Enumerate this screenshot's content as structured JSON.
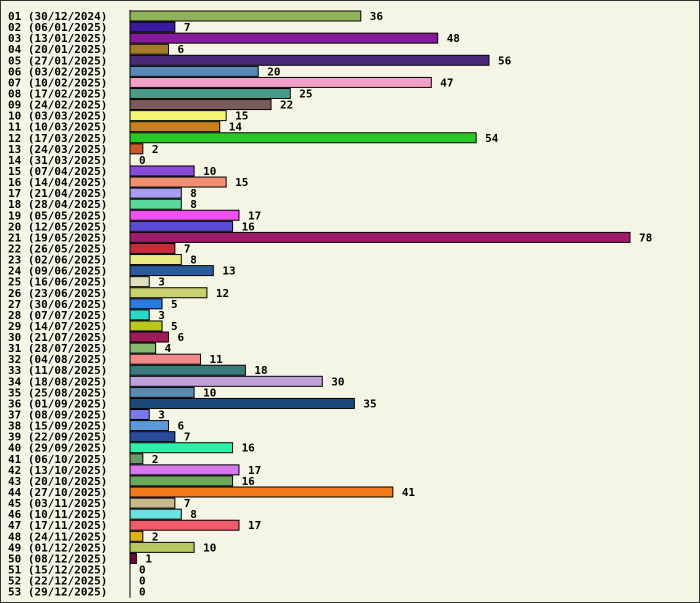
{
  "chart_data": {
    "type": "bar",
    "orientation": "horizontal",
    "title": "",
    "xlabel": "",
    "ylabel": "",
    "grid": false,
    "xlim": [
      0,
      78
    ],
    "categories": [
      "01 (30/12/2024)",
      "02 (06/01/2025)",
      "03 (13/01/2025)",
      "04 (20/01/2025)",
      "05 (27/01/2025)",
      "06 (03/02/2025)",
      "07 (10/02/2025)",
      "08 (17/02/2025)",
      "09 (24/02/2025)",
      "10 (03/03/2025)",
      "11 (10/03/2025)",
      "12 (17/03/2025)",
      "13 (24/03/2025)",
      "14 (31/03/2025)",
      "15 (07/04/2025)",
      "16 (14/04/2025)",
      "17 (21/04/2025)",
      "18 (28/04/2025)",
      "19 (05/05/2025)",
      "20 (12/05/2025)",
      "21 (19/05/2025)",
      "22 (26/05/2025)",
      "23 (02/06/2025)",
      "24 (09/06/2025)",
      "25 (16/06/2025)",
      "26 (23/06/2025)",
      "27 (30/06/2025)",
      "28 (07/07/2025)",
      "29 (14/07/2025)",
      "30 (21/07/2025)",
      "31 (28/07/2025)",
      "32 (04/08/2025)",
      "33 (11/08/2025)",
      "34 (18/08/2025)",
      "35 (25/08/2025)",
      "36 (01/09/2025)",
      "37 (08/09/2025)",
      "38 (15/09/2025)",
      "39 (22/09/2025)",
      "40 (29/09/2025)",
      "41 (06/10/2025)",
      "42 (13/10/2025)",
      "43 (20/10/2025)",
      "44 (27/10/2025)",
      "45 (03/11/2025)",
      "46 (10/11/2025)",
      "47 (17/11/2025)",
      "48 (24/11/2025)",
      "49 (01/12/2025)",
      "50 (08/12/2025)",
      "51 (15/12/2025)",
      "52 (22/12/2025)",
      "53 (29/12/2025)"
    ],
    "values": [
      36,
      7,
      48,
      6,
      56,
      20,
      47,
      25,
      22,
      15,
      14,
      54,
      2,
      0,
      10,
      15,
      8,
      8,
      17,
      16,
      78,
      7,
      8,
      13,
      3,
      12,
      5,
      3,
      5,
      6,
      4,
      11,
      18,
      30,
      10,
      35,
      3,
      6,
      7,
      16,
      2,
      17,
      16,
      41,
      7,
      8,
      17,
      2,
      10,
      1,
      0,
      0,
      0
    ],
    "colors": [
      "#8fb35a",
      "#3a1a9e",
      "#861a9a",
      "#a67a28",
      "#4a2a78",
      "#5a8ab8",
      "#f0a0c8",
      "#4a9a8a",
      "#7a5a5a",
      "#f5f575",
      "#c8801a",
      "#28c828",
      "#c85a2a",
      "#ffffff",
      "#8a4ad8",
      "#f09070",
      "#a89ef0",
      "#5ad89a",
      "#f050f0",
      "#5a4ad8",
      "#a01a6a",
      "#c82a3a",
      "#eaea80",
      "#2a5a9a",
      "#e0e0c0",
      "#c8d070",
      "#2a7ae0",
      "#2ad8c8",
      "#b8c820",
      "#a01a5a",
      "#8ab870",
      "#f08a8a",
      "#3a7a7a",
      "#c0a0d8",
      "#5a8ab0",
      "#1a4a7a",
      "#7a7af0",
      "#5a9ad8",
      "#2a4a9a",
      "#2af0a8",
      "#6a9a6a",
      "#d878f0",
      "#6aa85a",
      "#f07a1a",
      "#c8b890",
      "#6ae0e0",
      "#f05a6a",
      "#e0b01a",
      "#b8c860",
      "#6a0a3a",
      "#c0c0c0",
      "#c0c0c0",
      "#c0c0c0"
    ]
  }
}
